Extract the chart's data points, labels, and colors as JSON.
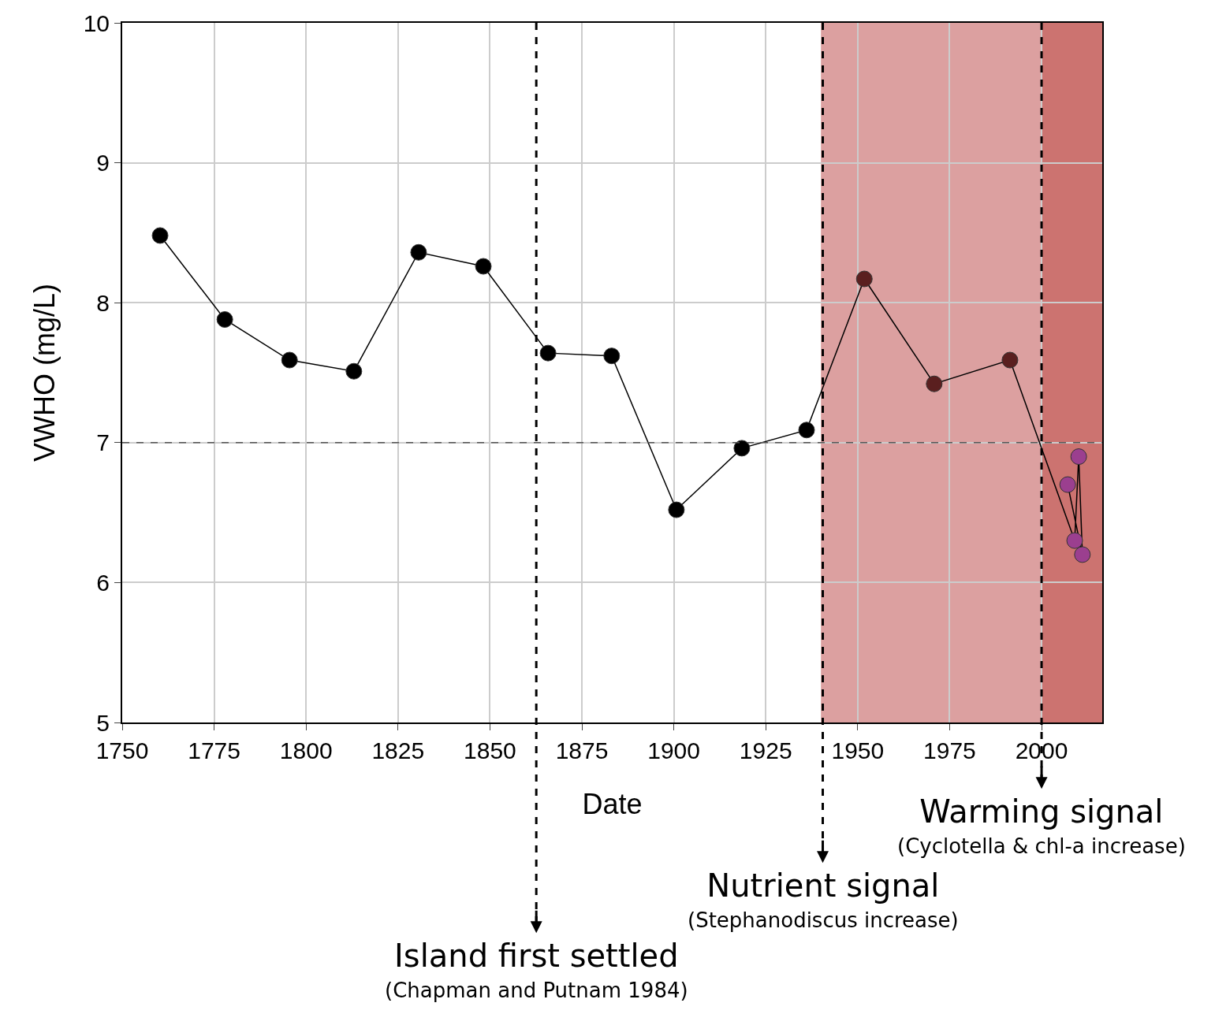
{
  "chart_data": {
    "type": "line",
    "xlabel": "Date",
    "ylabel": "VWHO (mg/L)",
    "x": [
      1760.3,
      1777.9,
      1795.5,
      1813.0,
      1830.6,
      1848.2,
      1865.8,
      1883.1,
      1900.7,
      1918.5,
      1936.1,
      1951.8,
      1970.8,
      1991.4,
      2009.0,
      2010.1,
      2011.1,
      2007.1
    ],
    "series": [
      {
        "color": "#000000",
        "colors": [
          "#000000",
          "#000000",
          "#000000",
          "#000000",
          "#000000",
          "#000000",
          "#000000",
          "#000000",
          "#000000",
          "#000000",
          "#000000",
          "#5a1f1f",
          "#5a1f1f",
          "#5a1f1f",
          "#9b3f8f",
          "#9b3f8f",
          "#9b3f8f",
          "#9b3f8f"
        ],
        "values": [
          8.48,
          7.88,
          7.59,
          7.51,
          8.36,
          8.26,
          7.64,
          7.62,
          6.52,
          6.96,
          7.09,
          8.17,
          7.42,
          7.59,
          6.3,
          6.9,
          6.2,
          6.7
        ]
      }
    ],
    "xlim": [
      1750,
      2016.5
    ],
    "xticks": [
      1750,
      1775,
      1800,
      1825,
      1850,
      1875,
      1900,
      1925,
      1950,
      1975,
      2000
    ],
    "ylim": [
      5,
      10
    ],
    "yticks": [
      5,
      6,
      7,
      8,
      9,
      10
    ],
    "grid": true,
    "marker": "circle",
    "line_style": "solid",
    "bands": [
      {
        "axis": "x",
        "from": 1940,
        "to": 2000,
        "color": "#dca0a0"
      },
      {
        "axis": "x",
        "from": 2000,
        "to": 2016.5,
        "color": "#cc7370"
      }
    ],
    "ref_lines": [
      {
        "axis": "y",
        "value": 7,
        "line_style": "dashed",
        "color": "#555555"
      },
      {
        "axis": "x",
        "value": 1862.6,
        "line_style": "dashed",
        "color": "#000000",
        "label": "Island first settled\n(Chapman and Putnam 1984)"
      },
      {
        "axis": "x",
        "value": 1940.5,
        "line_style": "dashed",
        "color": "#000000",
        "label": "Nutrient signal\n(Stephanodiscus increase)"
      },
      {
        "axis": "x",
        "value": 2000,
        "line_style": "dashed",
        "color": "#000000",
        "label": "Warming signal\n(Cyclotella & chl-a increase)"
      }
    ]
  }
}
